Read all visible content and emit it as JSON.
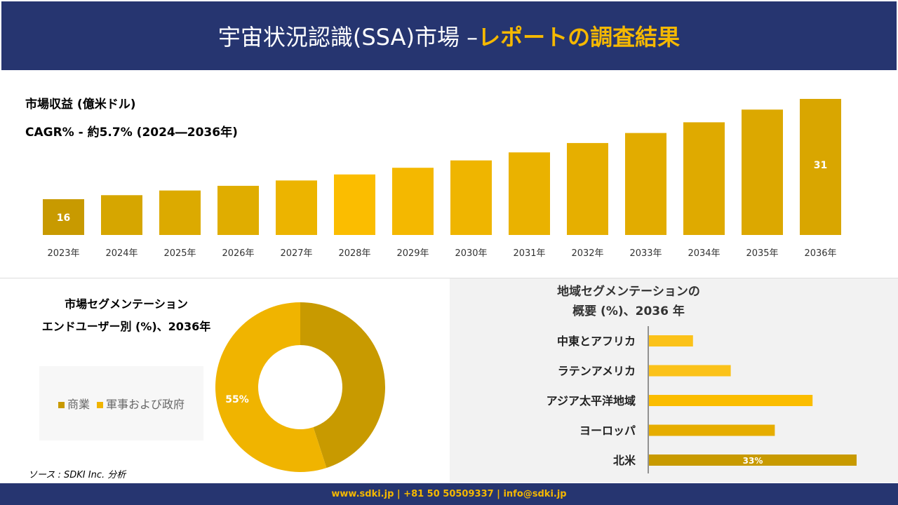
{
  "header": {
    "title_main": "宇宙状況認識(SSA)市場 –",
    "title_highlight": "レポートの調査結果"
  },
  "revenue": {
    "label": "市場収益 (億米ドル)",
    "cagr": "CAGR% - 約5.7% (2024―2036年)"
  },
  "chart_data": [
    {
      "type": "bar",
      "categories": [
        "2023年",
        "2024年",
        "2025年",
        "2026年",
        "2027年",
        "2028年",
        "2029年",
        "2030年",
        "2031年",
        "2032年",
        "2033年",
        "2034年",
        "2035年",
        "2036年"
      ],
      "values": [
        16,
        16.6,
        17.3,
        18.0,
        18.8,
        19.7,
        20.7,
        21.8,
        23.0,
        24.4,
        25.9,
        27.5,
        29.4,
        31
      ],
      "data_labels": {
        "0": "16",
        "13": "31"
      },
      "xlabel": "",
      "ylabel": ""
    },
    {
      "type": "pie",
      "title": "市場セグメンテーション エンドユーザー別 (%)、2036年",
      "title_line1": "市場セグメンテーション",
      "title_line2": "エンドユーザー別 (%)、2036年",
      "categories": [
        "商業",
        "軍事および政府"
      ],
      "values": [
        45,
        55
      ],
      "data_labels": {
        "1": "55%"
      },
      "colors": [
        "#c89a00",
        "#f0b400"
      ],
      "legend": "left"
    },
    {
      "type": "bar",
      "orientation": "horizontal",
      "title_line1": "地域セグメンテーションの",
      "title_line2": "概要 (%)、2036 年",
      "categories": [
        "中東とアフリカ",
        "ラテンアメリカ",
        "アジア太平洋地域",
        "ヨーロッパ",
        "北米"
      ],
      "values": [
        7,
        13,
        26,
        20,
        33
      ],
      "data_labels": {
        "4": "33%"
      }
    }
  ],
  "source": "ソース : SDKI Inc. 分析",
  "footer": "www.sdki.jp | +81 50 50509337 | info@sdki.jp"
}
